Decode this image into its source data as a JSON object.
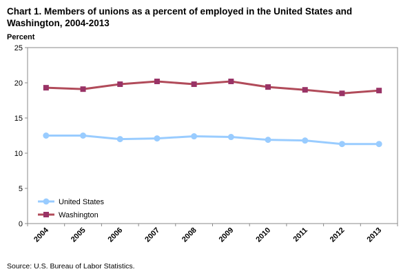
{
  "header": {
    "title": "Chart 1. Members of unions as a percent of employed in the United States and Washington, 2004-2013",
    "ylabel": "Percent"
  },
  "footer": {
    "source": "Source: U.S. Bureau of Labor Statistics."
  },
  "chart_data": {
    "type": "line",
    "title": "Chart 1. Members of unions as a percent of employed in the United States and Washington, 2004-2013",
    "xlabel": "",
    "ylabel": "Percent",
    "categories": [
      "2004",
      "2005",
      "2006",
      "2007",
      "2008",
      "2009",
      "2010",
      "2011",
      "2012",
      "2013"
    ],
    "ylim": [
      0,
      25
    ],
    "yticks": [
      0,
      5,
      10,
      15,
      20,
      25
    ],
    "grid": false,
    "legend_position": "bottom-left",
    "series": [
      {
        "name": "United States",
        "color": "#99ccff",
        "marker": "circle",
        "values": [
          12.5,
          12.5,
          12.0,
          12.1,
          12.4,
          12.3,
          11.9,
          11.8,
          11.3,
          11.3
        ]
      },
      {
        "name": "Washington",
        "color": "#b14b5a",
        "marker_color": "#993366",
        "marker": "square",
        "values": [
          19.3,
          19.1,
          19.8,
          20.2,
          19.8,
          20.2,
          19.4,
          19.0,
          18.5,
          18.9
        ]
      }
    ]
  }
}
